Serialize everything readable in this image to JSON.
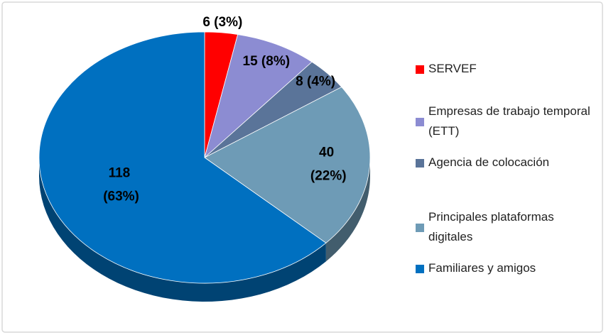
{
  "chart_data": {
    "type": "pie",
    "categories": [
      "SERVEF",
      "Empresas de trabajo temporal (ETT)",
      "Agencia de colocación",
      "Principales plataformas digitales",
      "Familiares y amigos"
    ],
    "values": [
      6,
      15,
      8,
      40,
      118
    ],
    "value_labels": [
      "6 (3%)",
      "15 (8%)",
      "8 (4%)",
      "40 (22%)",
      "118 (63%)"
    ],
    "colors": [
      "#ff0000",
      "#8c8cd2",
      "#5a7499",
      "#6e9bb6",
      "#0070c0"
    ],
    "legend": "right"
  }
}
